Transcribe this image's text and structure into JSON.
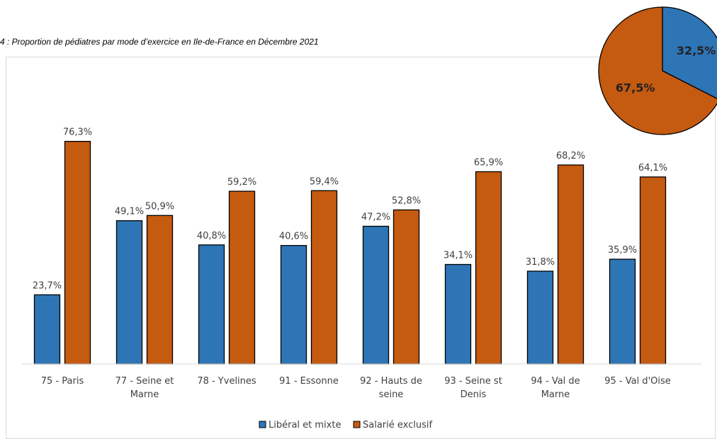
{
  "caption": "4 : Proportion de pédiatres par mode d’exercice en Ile-de-France en Décembre 2021",
  "colors": {
    "liberal": "#2e75b6",
    "salarie": "#c55a11",
    "stroke": "#000000"
  },
  "chart_data": [
    {
      "type": "bar",
      "categories": [
        [
          "75 - Paris"
        ],
        [
          "77 - Seine et",
          "Marne"
        ],
        [
          "78 - Yvelines"
        ],
        [
          "91 - Essonne"
        ],
        [
          "92 - Hauts de",
          "seine"
        ],
        [
          "93 - Seine st",
          "Denis"
        ],
        [
          "94 - Val de",
          "Marne"
        ],
        [
          "95 - Val d'Oise"
        ]
      ],
      "series": [
        {
          "name": "Libéral et mixte",
          "values": [
            23.7,
            49.1,
            40.8,
            40.6,
            47.2,
            34.1,
            31.8,
            35.9
          ],
          "labels": [
            "23,7%",
            "49,1%",
            "40,8%",
            "40,6%",
            "47,2%",
            "34,1%",
            "31,8%",
            "35,9%"
          ]
        },
        {
          "name": "Salarié exclusif",
          "values": [
            76.3,
            50.9,
            59.2,
            59.4,
            52.8,
            65.9,
            68.2,
            64.1
          ],
          "labels": [
            "76,3%",
            "50,9%",
            "59,2%",
            "59,4%",
            "52,8%",
            "65,9%",
            "68,2%",
            "64,1%"
          ]
        }
      ],
      "ylim": [
        0,
        100
      ],
      "grid": false,
      "legend": "bottom"
    },
    {
      "type": "pie",
      "slices": [
        {
          "name": "Libéral et mixte",
          "value": 32.5,
          "label": "32,5%"
        },
        {
          "name": "Salarié exclusif",
          "value": 67.5,
          "label": "67,5%"
        }
      ]
    }
  ]
}
